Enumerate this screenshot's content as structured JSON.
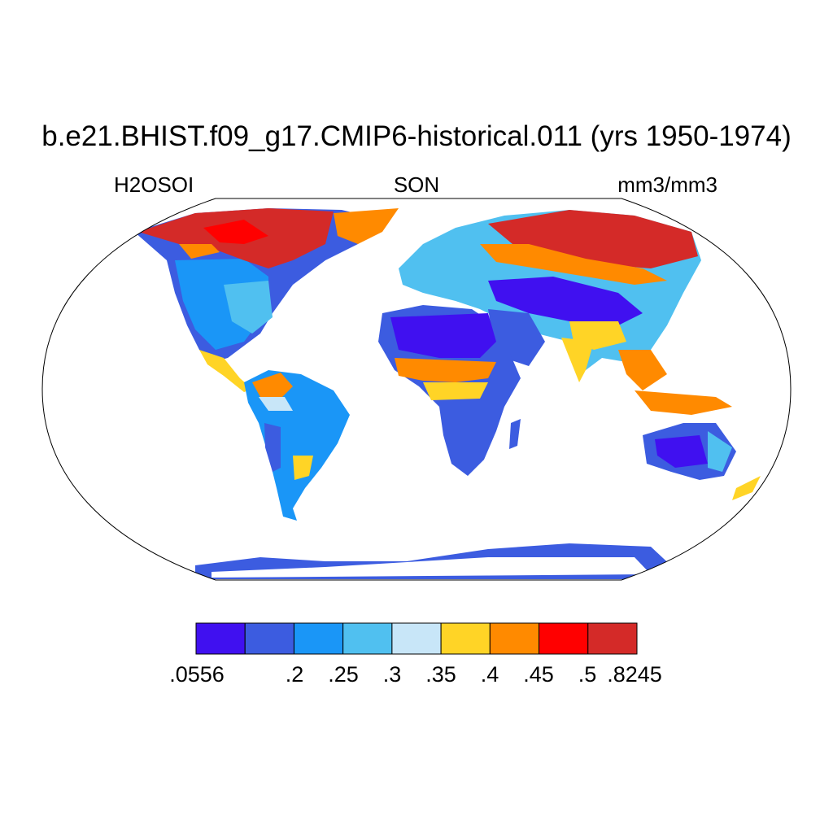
{
  "title": "b.e21.BHIST.f09_g17.CMIP6-historical.011 (yrs 1950-1974)",
  "subtitle_left": "H2OSOI",
  "subtitle_center": "SON",
  "subtitle_right": "mm3/mm3",
  "colorbar": {
    "colors": [
      "#4010f0",
      "#3c5ce0",
      "#1a96f7",
      "#50c0f0",
      "#c8e6f8",
      "#ffd426",
      "#ff8a00",
      "#ff0000",
      "#d42a28"
    ],
    "labels": [
      ".0556",
      ".2",
      ".25",
      ".3",
      ".35",
      ".4",
      ".45",
      ".5",
      ".8245"
    ]
  }
}
